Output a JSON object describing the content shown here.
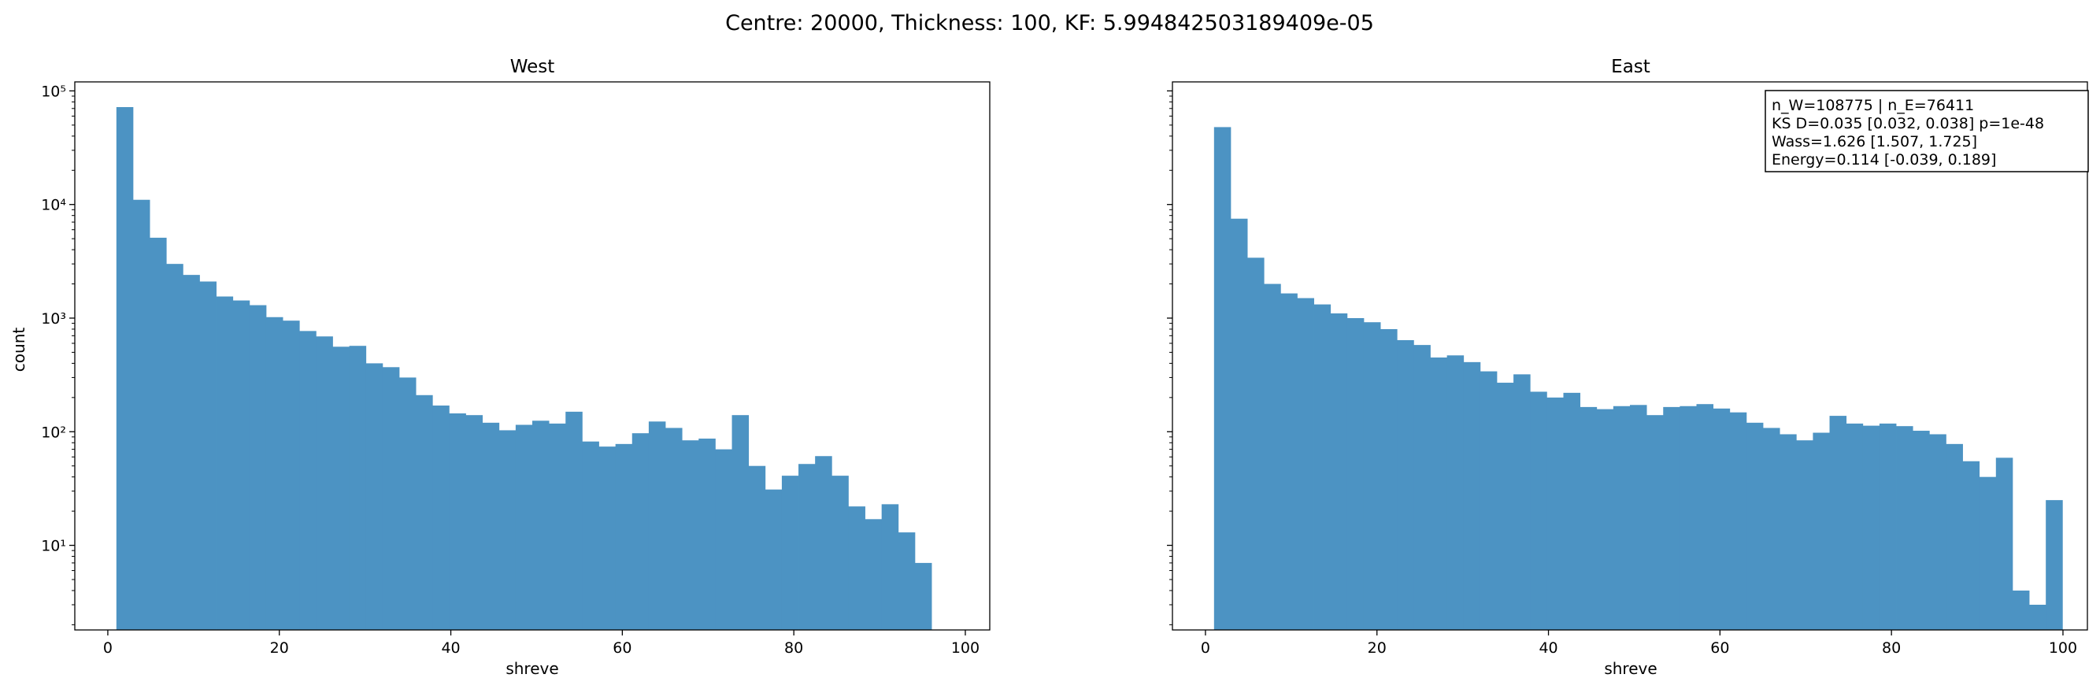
{
  "figure": {
    "suptitle": "Centre: 20000, Thickness: 100, KF: 5.994842503189409e-05"
  },
  "chart_data": [
    {
      "type": "bar",
      "subtype": "histogram",
      "title": "West",
      "xlabel": "shreve",
      "ylabel": "count",
      "xlim": [
        -3.85,
        102.85
      ],
      "ylim": [
        1.8,
        120000
      ],
      "yscale": "log",
      "xticks": [
        0,
        20,
        40,
        60,
        80,
        100
      ],
      "yticks": [
        10,
        100,
        1000,
        10000,
        100000
      ],
      "ytick_labels": [
        "10¹",
        "10²",
        "10³",
        "10⁴",
        "10⁵"
      ],
      "bin_start": 1,
      "bin_width": 1.94,
      "counts": [
        72000,
        11000,
        5100,
        3000,
        2400,
        2100,
        1550,
        1430,
        1300,
        1020,
        950,
        770,
        690,
        560,
        570,
        400,
        370,
        300,
        210,
        170,
        145,
        140,
        120,
        103,
        115,
        125,
        118,
        150,
        82,
        74,
        78,
        97,
        123,
        108,
        84,
        87,
        70,
        140,
        50,
        31,
        41,
        52,
        61,
        41,
        22,
        17,
        23,
        13,
        7
      ],
      "color": "#4c93c3",
      "grid": false
    },
    {
      "type": "bar",
      "subtype": "histogram",
      "title": "East",
      "xlabel": "shreve",
      "ylabel": "",
      "xlim": [
        -3.85,
        102.85
      ],
      "ylim": [
        1.8,
        120000
      ],
      "yscale": "log",
      "xticks": [
        0,
        20,
        40,
        60,
        80,
        100
      ],
      "shared_y": true,
      "bin_start": 1,
      "bin_width": 1.94,
      "counts": [
        48000,
        7500,
        3400,
        2000,
        1650,
        1500,
        1320,
        1100,
        1000,
        920,
        800,
        640,
        580,
        450,
        470,
        410,
        340,
        270,
        320,
        225,
        200,
        220,
        165,
        158,
        168,
        172,
        140,
        165,
        168,
        175,
        160,
        148,
        120,
        108,
        95,
        84,
        98,
        138,
        118,
        113,
        118,
        112,
        102,
        95,
        78,
        55,
        40,
        59,
        4,
        3,
        25
      ],
      "color": "#4c93c3",
      "grid": false,
      "annotation": {
        "lines": [
          "n_W=108775 | n_E=76411",
          "KS D=0.035 [0.032, 0.038]  p=1e-48",
          "Wass=1.626 [1.507, 1.725]",
          "Energy=0.114 [-0.039, 0.189]"
        ],
        "placement": "top-right"
      }
    }
  ]
}
